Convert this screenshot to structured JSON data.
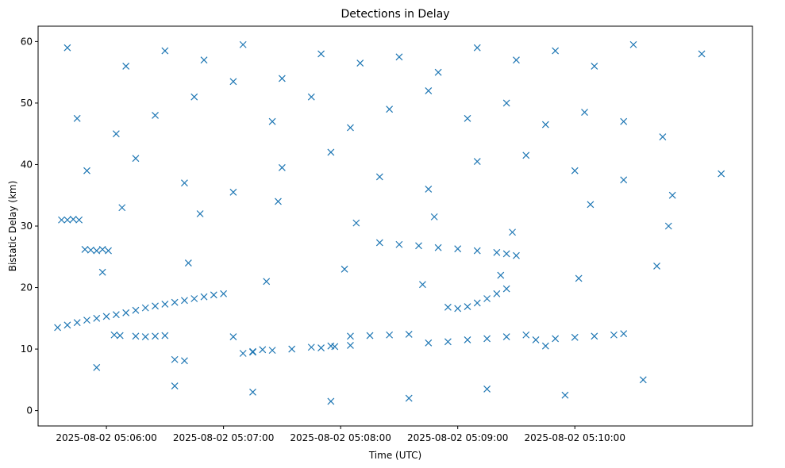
{
  "chart_data": {
    "type": "scatter",
    "title": "Detections in Delay",
    "xlabel": "Time (UTC)",
    "ylabel": "Bistatic Delay (km)",
    "x_tick_labels": [
      "2025-08-02 05:06:00",
      "2025-08-02 05:07:00",
      "2025-08-02 05:08:00",
      "2025-08-02 05:09:00",
      "2025-08-02 05:10:00"
    ],
    "y_ticks": [
      0,
      10,
      20,
      30,
      40,
      50,
      60
    ],
    "xlim": [
      "2025-08-02 05:05:25",
      "2025-08-02 05:11:31"
    ],
    "ylim": [
      -2.5,
      62.5
    ],
    "grid": false,
    "legend": "none",
    "marker": "x",
    "color": "#1f77b4",
    "series": [
      {
        "x": [
          "2025-08-02 05:05:35",
          "2025-08-02 05:05:40",
          "2025-08-02 05:05:45",
          "2025-08-02 05:05:50",
          "2025-08-02 05:05:55",
          "2025-08-02 05:06:00",
          "2025-08-02 05:06:05",
          "2025-08-02 05:06:10",
          "2025-08-02 05:06:15",
          "2025-08-02 05:06:20",
          "2025-08-02 05:06:25",
          "2025-08-02 05:06:30",
          "2025-08-02 05:06:35",
          "2025-08-02 05:06:40",
          "2025-08-02 05:06:45",
          "2025-08-02 05:06:50",
          "2025-08-02 05:06:55",
          "2025-08-02 05:07:00",
          "2025-08-02 05:07:05",
          "2025-08-02 05:07:10",
          "2025-08-02 05:07:15",
          "2025-08-02 05:07:20",
          "2025-08-02 05:05:37",
          "2025-08-02 05:05:40",
          "2025-08-02 05:05:43",
          "2025-08-02 05:05:46",
          "2025-08-02 05:05:49",
          "2025-08-02 05:05:52",
          "2025-08-02 05:05:55",
          "2025-08-02 05:05:58",
          "2025-08-02 05:06:01",
          "2025-08-02 05:06:04",
          "2025-08-02 05:06:07",
          "2025-08-02 05:06:15",
          "2025-08-02 05:06:20",
          "2025-08-02 05:06:25",
          "2025-08-02 05:06:30",
          "2025-08-02 05:06:35",
          "2025-08-02 05:06:40",
          "2025-08-02 05:07:50",
          "2025-08-02 05:07:57",
          "2025-08-02 05:08:05",
          "2025-08-02 05:08:20",
          "2025-08-02 05:08:30",
          "2025-08-02 05:08:40",
          "2025-08-02 05:08:50",
          "2025-08-02 05:09:00",
          "2025-08-02 05:09:10",
          "2025-08-02 05:09:20",
          "2025-08-02 05:09:25",
          "2025-08-02 05:09:30",
          "2025-08-02 05:09:40",
          "2025-08-02 05:09:50",
          "2025-08-02 05:10:00",
          "2025-08-02 05:10:10",
          "2025-08-02 05:10:20",
          "2025-08-02 05:10:25",
          "2025-08-02 05:07:15",
          "2025-08-02 05:07:25",
          "2025-08-02 05:07:35",
          "2025-08-02 05:07:45",
          "2025-08-02 05:07:55",
          "2025-08-02 05:08:05",
          "2025-08-02 05:08:15",
          "2025-08-02 05:08:25",
          "2025-08-02 05:08:35",
          "2025-08-02 05:08:45",
          "2025-08-02 05:08:55",
          "2025-08-02 05:09:05",
          "2025-08-02 05:09:15",
          "2025-08-02 05:09:25",
          "2025-08-02 05:09:35",
          "2025-08-02 05:09:45",
          "2025-08-02 05:08:55",
          "2025-08-02 05:09:00",
          "2025-08-02 05:09:05",
          "2025-08-02 05:09:10",
          "2025-08-02 05:09:15",
          "2025-08-02 05:09:20",
          "2025-08-02 05:09:25",
          "2025-08-02 05:05:40",
          "2025-08-02 05:06:10",
          "2025-08-02 05:06:30",
          "2025-08-02 05:06:50",
          "2025-08-02 05:07:10",
          "2025-08-02 05:07:30",
          "2025-08-02 05:07:50",
          "2025-08-02 05:08:10",
          "2025-08-02 05:08:30",
          "2025-08-02 05:08:50",
          "2025-08-02 05:09:10",
          "2025-08-02 05:09:30",
          "2025-08-02 05:09:50",
          "2025-08-02 05:10:10",
          "2025-08-02 05:10:30",
          "2025-08-02 05:11:05",
          "2025-08-02 05:05:45",
          "2025-08-02 05:06:05",
          "2025-08-02 05:06:25",
          "2025-08-02 05:06:45",
          "2025-08-02 05:07:05",
          "2025-08-02 05:07:25",
          "2025-08-02 05:07:45",
          "2025-08-02 05:08:05",
          "2025-08-02 05:08:25",
          "2025-08-02 05:08:45",
          "2025-08-02 05:09:05",
          "2025-08-02 05:09:25",
          "2025-08-02 05:09:45",
          "2025-08-02 05:10:05",
          "2025-08-02 05:10:25",
          "2025-08-02 05:10:45",
          "2025-08-02 05:05:50",
          "2025-08-02 05:06:15",
          "2025-08-02 05:06:40",
          "2025-08-02 05:07:05",
          "2025-08-02 05:07:30",
          "2025-08-02 05:07:55",
          "2025-08-02 05:08:20",
          "2025-08-02 05:08:45",
          "2025-08-02 05:09:10",
          "2025-08-02 05:09:35",
          "2025-08-02 05:10:00",
          "2025-08-02 05:10:25",
          "2025-08-02 05:10:50",
          "2025-08-02 05:11:15",
          "2025-08-02 05:05:55",
          "2025-08-02 05:06:35",
          "2025-08-02 05:07:15",
          "2025-08-02 05:07:55",
          "2025-08-02 05:08:35",
          "2025-08-02 05:09:15",
          "2025-08-02 05:09:55",
          "2025-08-02 05:10:35",
          "2025-08-02 05:05:58",
          "2025-08-02 05:06:42",
          "2025-08-02 05:07:22",
          "2025-08-02 05:08:02",
          "2025-08-02 05:08:42",
          "2025-08-02 05:09:22",
          "2025-08-02 05:10:02",
          "2025-08-02 05:10:42",
          "2025-08-02 05:06:08",
          "2025-08-02 05:06:48",
          "2025-08-02 05:07:28",
          "2025-08-02 05:08:08",
          "2025-08-02 05:08:48",
          "2025-08-02 05:09:28",
          "2025-08-02 05:10:08",
          "2025-08-02 05:10:48"
        ],
        "y": [
          13.5,
          13.9,
          14.3,
          14.7,
          15.0,
          15.3,
          15.6,
          15.9,
          16.3,
          16.7,
          17.0,
          17.3,
          17.6,
          17.9,
          18.2,
          18.5,
          18.8,
          19.0,
          12.0,
          9.3,
          9.6,
          9.9,
          31.0,
          31.0,
          31.1,
          31.0,
          26.2,
          26.1,
          26.0,
          26.2,
          26.0,
          12.3,
          12.2,
          12.1,
          12.0,
          12.1,
          12.2,
          8.3,
          8.1,
          10.2,
          10.4,
          10.6,
          27.3,
          27.0,
          26.8,
          26.5,
          26.3,
          26.0,
          25.7,
          25.5,
          25.2,
          11.5,
          11.7,
          11.9,
          12.1,
          12.3,
          12.5,
          9.5,
          9.8,
          10.0,
          10.3,
          10.5,
          12.1,
          12.2,
          12.3,
          12.4,
          11.0,
          11.2,
          11.5,
          11.7,
          12.0,
          12.3,
          10.5,
          16.8,
          16.6,
          16.9,
          17.5,
          18.2,
          19.0,
          19.8,
          59.0,
          56.0,
          58.5,
          57.0,
          59.5,
          54.0,
          58.0,
          56.5,
          57.5,
          55.0,
          59.0,
          57.0,
          58.5,
          56.0,
          59.5,
          58.0,
          47.5,
          45.0,
          48.0,
          51.0,
          53.5,
          47.0,
          51.0,
          46.0,
          49.0,
          52.0,
          47.5,
          50.0,
          46.5,
          48.5,
          47.0,
          44.5,
          39.0,
          41.0,
          37.0,
          35.5,
          39.5,
          42.0,
          38.0,
          36.0,
          40.5,
          41.5,
          39.0,
          37.5,
          35.0,
          38.5,
          7.0,
          4.0,
          3.0,
          1.5,
          2.0,
          3.5,
          2.5,
          5.0,
          22.5,
          24.0,
          21.0,
          23.0,
          20.5,
          22.0,
          21.5,
          23.5,
          33.0,
          32.0,
          34.0,
          30.5,
          31.5,
          29.0,
          33.5,
          30.0
        ]
      }
    ]
  }
}
